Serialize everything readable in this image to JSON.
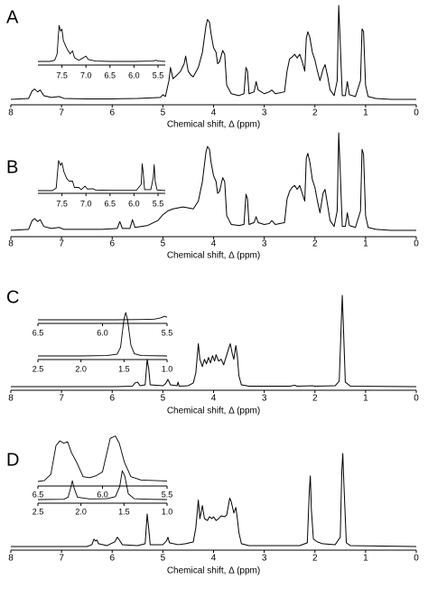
{
  "chart_data": [
    {
      "type": "line",
      "label": "A",
      "x_label": "Chemical shift, Δ (ppm)",
      "xlim": [
        8,
        0
      ],
      "xticks": [
        8,
        7,
        6,
        5,
        4,
        3,
        2,
        1,
        0
      ],
      "ylim": [
        0,
        100
      ],
      "color": "#000000",
      "x": [
        8.0,
        7.65,
        7.58,
        7.53,
        7.47,
        7.42,
        7.35,
        7.2,
        7.05,
        6.95,
        6.5,
        6.0,
        5.5,
        5.05,
        5.0,
        4.95,
        4.88,
        4.85,
        4.8,
        4.72,
        4.65,
        4.58,
        4.55,
        4.5,
        4.45,
        4.4,
        4.3,
        4.22,
        4.15,
        4.12,
        4.08,
        4.05,
        4.0,
        3.95,
        3.92,
        3.88,
        3.82,
        3.78,
        3.74,
        3.65,
        3.5,
        3.4,
        3.36,
        3.33,
        3.3,
        3.2,
        3.16,
        3.12,
        3.0,
        2.9,
        2.85,
        2.78,
        2.6,
        2.55,
        2.5,
        2.45,
        2.4,
        2.35,
        2.3,
        2.25,
        2.2,
        2.17,
        2.14,
        2.1,
        2.05,
        2.0,
        1.95,
        1.9,
        1.84,
        1.8,
        1.75,
        1.7,
        1.62,
        1.56,
        1.53,
        1.5,
        1.46,
        1.4,
        1.36,
        1.32,
        1.2,
        1.1,
        1.07,
        1.04,
        1.0,
        0.95,
        0.8,
        0.5,
        0.0
      ],
      "values": [
        0,
        1,
        9,
        11,
        8,
        10,
        4,
        2,
        3,
        1,
        0.5,
        0.5,
        1,
        2,
        5,
        3,
        20,
        34,
        22,
        26,
        30,
        38,
        46,
        30,
        26,
        24,
        34,
        50,
        78,
        85,
        82,
        70,
        55,
        50,
        38,
        40,
        52,
        48,
        15,
        6,
        4,
        6,
        34,
        30,
        6,
        8,
        19,
        10,
        6,
        8,
        10,
        6,
        8,
        30,
        43,
        45,
        48,
        44,
        48,
        40,
        30,
        65,
        72,
        66,
        50,
        42,
        30,
        20,
        32,
        37,
        25,
        10,
        4,
        20,
        100,
        60,
        4,
        4,
        19,
        5,
        3,
        20,
        75,
        72,
        15,
        3,
        1,
        0,
        0
      ]
    },
    {
      "type": "line",
      "xlim": [
        8.0,
        5.35
      ],
      "xticks": [
        7.5,
        {
          "value": 7,
          "label": "7.0"
        },
        6.5,
        {
          "value": 6,
          "label": "6.0"
        },
        5.5
      ],
      "ylim": [
        0,
        100
      ],
      "color": "#000000",
      "x": [
        8.0,
        7.75,
        7.65,
        7.6,
        7.56,
        7.53,
        7.5,
        7.47,
        7.42,
        7.38,
        7.33,
        7.28,
        7.24,
        7.15,
        7.05,
        7.0,
        6.95,
        6.8,
        6.5,
        6.0,
        5.6,
        5.55,
        5.5,
        5.35
      ],
      "values": [
        0,
        0,
        3,
        20,
        95,
        80,
        85,
        55,
        40,
        30,
        20,
        28,
        10,
        3,
        10,
        14,
        5,
        1,
        0,
        0,
        1,
        3,
        1,
        0
      ]
    },
    {
      "type": "line",
      "label": "B",
      "x_label": "Chemical shift, Δ (ppm)",
      "xlim": [
        8,
        0
      ],
      "xticks": [
        8,
        7,
        6,
        5,
        4,
        3,
        2,
        1,
        0
      ],
      "ylim": [
        0,
        100
      ],
      "color": "#000000",
      "x": [
        8.0,
        7.65,
        7.58,
        7.53,
        7.47,
        7.42,
        7.35,
        7.2,
        7.05,
        6.95,
        6.5,
        6.2,
        5.9,
        5.85,
        5.8,
        5.65,
        5.6,
        5.55,
        5.3,
        5.1,
        5.0,
        4.9,
        4.8,
        4.7,
        4.6,
        4.5,
        4.4,
        4.3,
        4.22,
        4.15,
        4.12,
        4.08,
        4.05,
        4.0,
        3.95,
        3.92,
        3.88,
        3.82,
        3.78,
        3.74,
        3.65,
        3.5,
        3.4,
        3.36,
        3.33,
        3.3,
        3.2,
        3.16,
        3.12,
        3.0,
        2.9,
        2.85,
        2.78,
        2.6,
        2.55,
        2.5,
        2.45,
        2.4,
        2.35,
        2.3,
        2.25,
        2.2,
        2.17,
        2.14,
        2.1,
        2.05,
        2.0,
        1.95,
        1.9,
        1.84,
        1.8,
        1.75,
        1.7,
        1.62,
        1.56,
        1.53,
        1.5,
        1.46,
        1.4,
        1.36,
        1.32,
        1.2,
        1.1,
        1.07,
        1.04,
        1.0,
        0.95,
        0.8,
        0.5,
        0.0
      ],
      "values": [
        0,
        1,
        10,
        12,
        9,
        11,
        4,
        2,
        3,
        1,
        1,
        1,
        2,
        9,
        2,
        2,
        11,
        3,
        5,
        10,
        16,
        20,
        22,
        23,
        24,
        23,
        22,
        30,
        50,
        80,
        86,
        83,
        70,
        56,
        50,
        38,
        40,
        54,
        50,
        15,
        6,
        5,
        6,
        37,
        32,
        6,
        8,
        14,
        8,
        6,
        7,
        10,
        6,
        8,
        32,
        40,
        44,
        46,
        42,
        46,
        38,
        30,
        74,
        79,
        70,
        52,
        44,
        30,
        18,
        38,
        42,
        26,
        10,
        4,
        20,
        100,
        60,
        4,
        4,
        18,
        5,
        3,
        20,
        83,
        78,
        15,
        3,
        1,
        0,
        0
      ]
    },
    {
      "type": "line",
      "xlim": [
        8.0,
        5.35
      ],
      "xticks": [
        7.5,
        {
          "value": 7,
          "label": "7.0"
        },
        6.5,
        {
          "value": 6,
          "label": "6.0"
        },
        5.5
      ],
      "ylim": [
        0,
        100
      ],
      "color": "#000000",
      "x": [
        8.0,
        7.7,
        7.62,
        7.57,
        7.53,
        7.5,
        7.46,
        7.4,
        7.35,
        7.28,
        7.24,
        7.15,
        7.1,
        7.02,
        6.97,
        6.85,
        6.8,
        6.5,
        6.1,
        5.95,
        5.85,
        5.83,
        5.81,
        5.78,
        5.65,
        5.6,
        5.58,
        5.56,
        5.52,
        5.35
      ],
      "values": [
        0,
        0,
        8,
        95,
        80,
        88,
        60,
        38,
        30,
        30,
        10,
        10,
        3,
        14,
        5,
        6,
        2,
        1,
        1,
        1,
        20,
        85,
        60,
        3,
        3,
        40,
        82,
        30,
        2,
        0
      ]
    },
    {
      "type": "line",
      "label": "C",
      "x_label": "Chemical shift, Δ (ppm)",
      "xlim": [
        8,
        0
      ],
      "xticks": [
        8,
        7,
        6,
        5,
        4,
        3,
        2,
        1,
        0
      ],
      "ylim": [
        0,
        100
      ],
      "color": "#000000",
      "x": [
        8.0,
        6.0,
        5.6,
        5.55,
        5.5,
        5.45,
        5.35,
        5.31,
        5.28,
        5.25,
        5.0,
        4.95,
        4.9,
        4.85,
        4.72,
        4.7,
        4.68,
        4.5,
        4.4,
        4.35,
        4.3,
        4.27,
        4.22,
        4.18,
        4.14,
        4.1,
        4.06,
        4.02,
        3.98,
        3.95,
        3.9,
        3.85,
        3.8,
        3.75,
        3.7,
        3.67,
        3.63,
        3.6,
        3.56,
        3.53,
        3.5,
        3.45,
        3.3,
        2.5,
        2.4,
        2.35,
        2.05,
        2.0,
        1.6,
        1.52,
        1.48,
        1.46,
        1.44,
        1.4,
        1.3,
        0.0
      ],
      "values": [
        0,
        0,
        0.5,
        4,
        5,
        1,
        2,
        30,
        20,
        2,
        1,
        3,
        8,
        2,
        1,
        5,
        0.5,
        1,
        4,
        15,
        47,
        30,
        22,
        30,
        25,
        32,
        26,
        34,
        28,
        35,
        28,
        30,
        24,
        33,
        42,
        47,
        36,
        30,
        45,
        33,
        12,
        2,
        0.5,
        0.5,
        1.5,
        0.5,
        1,
        0.5,
        1,
        6,
        70,
        100,
        70,
        5,
        0.5,
        0
      ]
    },
    {
      "type": "line",
      "xlim": [
        6.5,
        5.5
      ],
      "xticks": [
        6.5,
        {
          "value": 6,
          "label": "6.0"
        },
        5.5
      ],
      "ylim": [
        0,
        100
      ],
      "color": "#000000",
      "x": [
        6.5,
        6.2,
        5.9,
        5.7,
        5.6,
        5.55,
        5.52,
        5.5
      ],
      "values": [
        0,
        0,
        0,
        2,
        5,
        15,
        28,
        20
      ]
    },
    {
      "type": "line",
      "xlim": [
        2.5,
        1.0
      ],
      "xticks": [
        2.5,
        {
          "value": 2,
          "label": "2.0"
        },
        1.5,
        {
          "value": 1,
          "label": "1.0"
        }
      ],
      "ylim": [
        0,
        100
      ],
      "color": "#000000",
      "x": [
        2.5,
        2.0,
        1.7,
        1.58,
        1.54,
        1.5,
        1.48,
        1.46,
        1.42,
        1.38,
        1.3,
        1.0
      ],
      "values": [
        0,
        0,
        1,
        4,
        20,
        85,
        100,
        85,
        25,
        5,
        1,
        0
      ]
    },
    {
      "type": "line",
      "label": "D",
      "x_label": "Chemical shift, Δ (ppm)",
      "xlim": [
        8,
        0
      ],
      "xticks": [
        8,
        7,
        6,
        5,
        4,
        3,
        2,
        1,
        0
      ],
      "ylim": [
        0,
        100
      ],
      "color": "#000000",
      "x": [
        8.0,
        6.5,
        6.4,
        6.36,
        6.33,
        6.3,
        6.27,
        6.1,
        5.95,
        5.9,
        5.87,
        5.8,
        5.5,
        5.35,
        5.31,
        5.28,
        5.25,
        5.0,
        4.93,
        4.9,
        4.87,
        4.7,
        4.55,
        4.4,
        4.35,
        4.3,
        4.27,
        4.22,
        4.18,
        4.12,
        4.08,
        4.03,
        4.0,
        3.95,
        3.9,
        3.85,
        3.78,
        3.74,
        3.68,
        3.65,
        3.6,
        3.56,
        3.53,
        3.5,
        3.45,
        3.3,
        2.9,
        2.5,
        2.3,
        2.15,
        2.11,
        2.09,
        2.07,
        2.03,
        1.95,
        1.85,
        1.6,
        1.5,
        1.47,
        1.45,
        1.43,
        1.38,
        1.3,
        0.0
      ],
      "values": [
        0,
        0,
        2,
        8,
        6,
        7,
        3,
        1,
        5,
        10,
        8,
        2,
        1,
        3,
        35,
        20,
        2,
        2,
        6,
        10,
        4,
        2,
        3,
        5,
        20,
        50,
        30,
        44,
        30,
        28,
        32,
        30,
        32,
        28,
        30,
        33,
        32,
        34,
        52,
        48,
        36,
        42,
        30,
        15,
        3,
        1,
        1,
        1,
        1,
        4,
        60,
        76,
        40,
        8,
        5,
        3,
        2,
        10,
        80,
        100,
        70,
        4,
        1,
        0
      ]
    },
    {
      "type": "line",
      "xlim": [
        6.5,
        5.5
      ],
      "xticks": [
        6.5,
        {
          "value": 6,
          "label": "6.0"
        },
        5.5
      ],
      "ylim": [
        0,
        100
      ],
      "color": "#000000",
      "x": [
        6.5,
        6.45,
        6.4,
        6.36,
        6.33,
        6.3,
        6.27,
        6.24,
        6.2,
        6.15,
        6.1,
        6.05,
        6.0,
        5.97,
        5.94,
        5.9,
        5.87,
        5.83,
        5.78,
        5.7,
        5.5
      ],
      "values": [
        0,
        2,
        15,
        75,
        85,
        80,
        83,
        60,
        40,
        10,
        8,
        12,
        20,
        55,
        90,
        95,
        80,
        40,
        10,
        3,
        1
      ]
    },
    {
      "type": "line",
      "xlim": [
        2.5,
        1.0
      ],
      "xticks": [
        2.5,
        {
          "value": 2,
          "label": "2.0"
        },
        1.5,
        {
          "value": 1,
          "label": "1.0"
        }
      ],
      "ylim": [
        0,
        100
      ],
      "color": "#000000",
      "x": [
        2.5,
        2.2,
        2.15,
        2.12,
        2.1,
        2.08,
        2.04,
        1.9,
        1.7,
        1.6,
        1.55,
        1.52,
        1.49,
        1.45,
        1.38,
        1.2,
        1.0
      ],
      "values": [
        0,
        1,
        8,
        40,
        65,
        40,
        8,
        2,
        3,
        10,
        45,
        100,
        80,
        20,
        3,
        1,
        0
      ]
    }
  ]
}
